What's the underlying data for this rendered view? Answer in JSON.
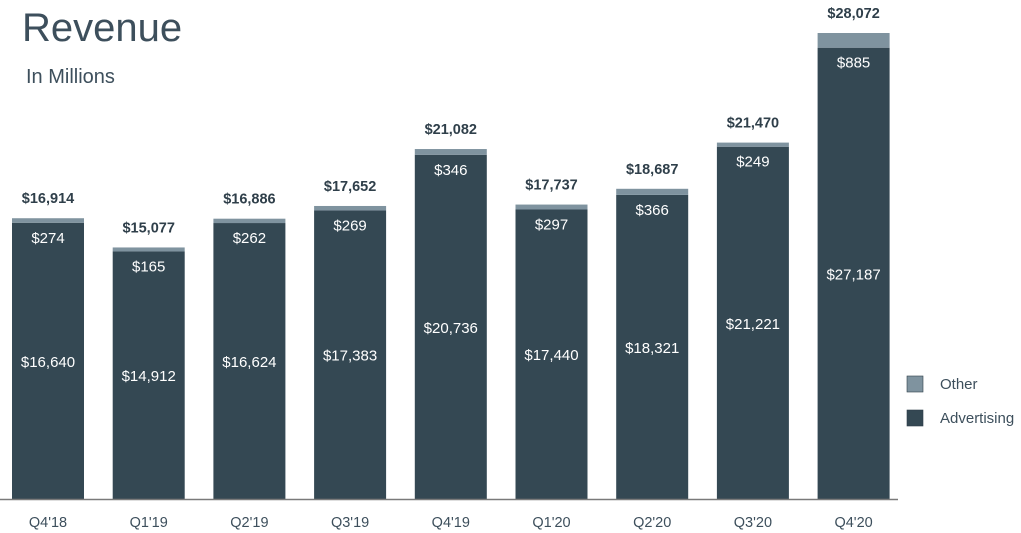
{
  "chart_data": {
    "type": "bar",
    "stacked": true,
    "title": "Revenue",
    "subtitle": "In Millions",
    "categories": [
      "Q4'18",
      "Q1'19",
      "Q2'19",
      "Q3'19",
      "Q4'19",
      "Q1'20",
      "Q2'20",
      "Q3'20",
      "Q4'20"
    ],
    "series": [
      {
        "name": "Advertising",
        "color": "#344853",
        "values": [
          16640,
          14912,
          16624,
          17383,
          20736,
          17440,
          18321,
          21221,
          27187
        ],
        "labels": [
          "$16,640",
          "$14,912",
          "$16,624",
          "$17,383",
          "$20,736",
          "$17,440",
          "$18,321",
          "$21,221",
          "$27,187"
        ]
      },
      {
        "name": "Other",
        "color": "#7f939f",
        "values": [
          274,
          165,
          262,
          269,
          346,
          297,
          366,
          249,
          885
        ],
        "labels": [
          "$274",
          "$165",
          "$262",
          "$269",
          "$346",
          "$297",
          "$366",
          "$249",
          "$885"
        ]
      }
    ],
    "totals": [
      16914,
      15077,
      16886,
      17652,
      21082,
      17737,
      18687,
      21470,
      28072
    ],
    "total_labels": [
      "$16,914",
      "$15,077",
      "$16,886",
      "$17,652",
      "$21,082",
      "$17,737",
      "$18,687",
      "$21,470",
      "$28,072"
    ],
    "legend": [
      {
        "name": "Other",
        "color": "#7f939f"
      },
      {
        "name": "Advertising",
        "color": "#344853"
      }
    ],
    "legend_position": "bottom-right",
    "xlabel": "",
    "ylabel": "",
    "ylim": [
      0,
      28072
    ],
    "grid": false
  }
}
